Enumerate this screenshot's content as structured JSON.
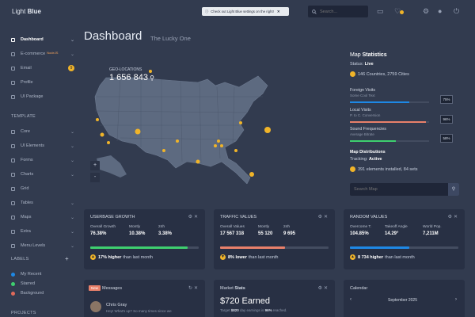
{
  "brand": {
    "light": "Light",
    "bold": "Blue"
  },
  "topbar": {
    "notice": "Check out Light Blue settings on the right!",
    "search_placeholder": "Search..."
  },
  "sidebar": {
    "items": [
      {
        "label": "Dashboard",
        "active": true
      },
      {
        "label": "E-commerce",
        "tag": "NodeJS"
      },
      {
        "label": "Email",
        "badge": "9"
      },
      {
        "label": "Profile"
      },
      {
        "label": "UI Package"
      }
    ],
    "template_title": "TEMPLATE",
    "template_items": [
      {
        "label": "Core"
      },
      {
        "label": "UI Elements"
      },
      {
        "label": "Forms"
      },
      {
        "label": "Charts"
      },
      {
        "label": "Grid"
      },
      {
        "label": "Tables"
      },
      {
        "label": "Maps"
      },
      {
        "label": "Extra"
      },
      {
        "label": "Menu Levels"
      }
    ],
    "labels_title": "LABELS",
    "labels": [
      {
        "label": "My Recent",
        "color": "#1e88e5"
      },
      {
        "label": "Starred",
        "color": "#3ecf6f"
      },
      {
        "label": "Background",
        "color": "#e06a5a"
      }
    ],
    "projects_title": "PROJECTS"
  },
  "page": {
    "title": "Dashboard",
    "subtitle": "The Lucky One"
  },
  "map": {
    "geo_label": "GEO-LOCATIONS",
    "geo_value": "1 656 843",
    "zoom_in": "+",
    "zoom_out": "-"
  },
  "map_stats": {
    "title_light": "Map",
    "title_bold": "Statistics",
    "status_label": "Status:",
    "status_value": "Live",
    "countries": "146 Countries, 2759 Cities",
    "stats": [
      {
        "title": "Foreign Visits",
        "sub": "Some Cool Text",
        "pct": "75%",
        "value": 0.75,
        "color": "#1e88e5"
      },
      {
        "title": "Local Visits",
        "sub": "P. to C. Conversion",
        "pct": "96%",
        "value": 0.96,
        "color": "#e8806a"
      },
      {
        "title": "Sound Frequencies",
        "sub": "Average Bitrate",
        "pct": "58%",
        "value": 0.58,
        "color": "#3ecf6f"
      }
    ],
    "distributions_title": "Map Distributions",
    "tracking_label": "Tracking:",
    "tracking_value": "Active",
    "installed": "391 elements installed, 84 sets",
    "search_placeholder": "Search Map"
  },
  "cards": [
    {
      "title": "USERBASE GROWTH",
      "labels": [
        "Overall Growth",
        "Montly",
        "24h"
      ],
      "values": [
        "76.38%",
        "10.38%",
        "3.38%"
      ],
      "bar": 0.9,
      "bar_color": "#3ecf6f",
      "foot_bold": "17% higher",
      "foot_rest": "than last month",
      "foot_icon": "▲"
    },
    {
      "title": "TRAFFIC VALUES",
      "labels": [
        "Overall Values",
        "Montly",
        "24h"
      ],
      "values": [
        "17 567 318",
        "55 120",
        "9 695"
      ],
      "bar": 0.6,
      "bar_color": "#e8806a",
      "foot_bold": "8% lower",
      "foot_rest": "than last month",
      "foot_icon": "▼"
    },
    {
      "title": "RANDOM VALUES",
      "labels": [
        "Overcome T.",
        "Takeoff Angle",
        "World Pop."
      ],
      "values": [
        "104.85%",
        "14.29°",
        "7,211M"
      ],
      "bar": 0.55,
      "bar_color": "#1e88e5",
      "foot_bold": "8 734 higher",
      "foot_rest": "than last month",
      "foot_icon": "▲"
    }
  ],
  "messages": {
    "tag": "New",
    "title": "Messages",
    "sender": "Chris Gray",
    "preview": "Hey! What's up? So many times since we"
  },
  "market": {
    "title_light": "Market",
    "title_bold": "Stats",
    "earned": "$720 Earned",
    "note_pre": "Target ",
    "note_amt": "$820",
    "note_mid": " day earnings is ",
    "note_pct": "96%",
    "note_post": " reached."
  },
  "calendar": {
    "title": "Calendar",
    "month": "September 2025"
  }
}
